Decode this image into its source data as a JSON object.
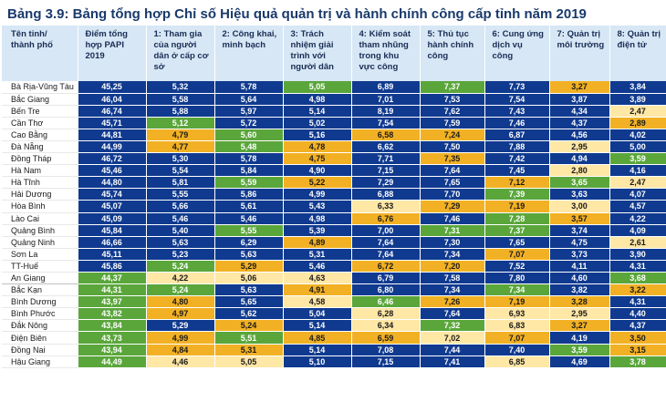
{
  "title": "Bảng 3.9: Bảng tổng hợp Chỉ số Hiệu quả quản trị và hành chính công cấp tỉnh năm 2019",
  "colors": {
    "b": "#103a8f",
    "g": "#5aa63b",
    "o": "#f2b124",
    "y": "#ffe7a6"
  },
  "headers": [
    "Tên tỉnh/ thành phố",
    "Điểm tổng hợp PAPI 2019",
    "1: Tham gia của người dân ở cấp cơ sở",
    "2: Công khai, minh bạch",
    "3: Trách nhiệm giải trình với người dân",
    "4: Kiểm soát tham nhũng trong khu vực công",
    "5: Thủ tục hành chính công",
    "6: Cung ứng dịch vụ công",
    "7: Quản trị môi trường",
    "8: Quản trị điện tử"
  ],
  "rows": [
    {
      "name": "Bà Rịa-Vũng Tàu",
      "v": [
        "45,25",
        "5,32",
        "5,78",
        "5,05",
        "6,89",
        "7,37",
        "7,73",
        "3,27",
        "3,84"
      ],
      "c": [
        "b",
        "b",
        "b",
        "g",
        "b",
        "g",
        "b",
        "o",
        "b"
      ]
    },
    {
      "name": "Bắc Giang",
      "v": [
        "46,04",
        "5,58",
        "5,64",
        "4,98",
        "7,01",
        "7,53",
        "7,54",
        "3,87",
        "3,89"
      ],
      "c": [
        "b",
        "b",
        "b",
        "b",
        "b",
        "b",
        "b",
        "b",
        "b"
      ]
    },
    {
      "name": "Bến Tre",
      "v": [
        "46,74",
        "5,88",
        "5,97",
        "5,14",
        "8,19",
        "7,62",
        "7,43",
        "4,34",
        "2,47"
      ],
      "c": [
        "b",
        "b",
        "b",
        "b",
        "b",
        "b",
        "b",
        "b",
        "y"
      ]
    },
    {
      "name": "Cần Thơ",
      "v": [
        "45,71",
        "5,12",
        "5,72",
        "5,02",
        "7,54",
        "7,59",
        "7,46",
        "4,37",
        "2,89"
      ],
      "c": [
        "b",
        "g",
        "b",
        "b",
        "b",
        "b",
        "b",
        "b",
        "o"
      ]
    },
    {
      "name": "Cao Bằng",
      "v": [
        "44,81",
        "4,79",
        "5,60",
        "5,16",
        "6,58",
        "7,24",
        "6,87",
        "4,56",
        "4,02"
      ],
      "c": [
        "b",
        "o",
        "g",
        "b",
        "o",
        "o",
        "b",
        "b",
        "b"
      ]
    },
    {
      "name": "Đà Nẵng",
      "v": [
        "44,99",
        "4,77",
        "5,48",
        "4,78",
        "6,62",
        "7,50",
        "7,88",
        "2,95",
        "5,00"
      ],
      "c": [
        "b",
        "o",
        "g",
        "o",
        "b",
        "b",
        "b",
        "y",
        "b"
      ]
    },
    {
      "name": "Đồng Tháp",
      "v": [
        "46,72",
        "5,30",
        "5,78",
        "4,75",
        "7,71",
        "7,35",
        "7,42",
        "4,94",
        "3,59"
      ],
      "c": [
        "b",
        "b",
        "b",
        "o",
        "b",
        "o",
        "b",
        "b",
        "g"
      ]
    },
    {
      "name": "Hà Nam",
      "v": [
        "45,46",
        "5,54",
        "5,84",
        "4,90",
        "7,15",
        "7,64",
        "7,45",
        "2,80",
        "4,16"
      ],
      "c": [
        "b",
        "b",
        "b",
        "b",
        "b",
        "b",
        "b",
        "y",
        "b"
      ]
    },
    {
      "name": "Hà Tĩnh",
      "v": [
        "44,80",
        "5,81",
        "5,59",
        "5,22",
        "7,29",
        "7,65",
        "7,12",
        "3,65",
        "2,47"
      ],
      "c": [
        "b",
        "b",
        "g",
        "o",
        "b",
        "b",
        "o",
        "g",
        "y"
      ]
    },
    {
      "name": "Hải Dương",
      "v": [
        "45,74",
        "5,55",
        "5,86",
        "4,99",
        "6,88",
        "7,70",
        "7,39",
        "3,63",
        "4,07"
      ],
      "c": [
        "b",
        "b",
        "b",
        "b",
        "b",
        "b",
        "g",
        "b",
        "b"
      ]
    },
    {
      "name": "Hòa Bình",
      "v": [
        "45,07",
        "5,66",
        "5,61",
        "5,43",
        "6,33",
        "7,29",
        "7,19",
        "3,00",
        "4,57"
      ],
      "c": [
        "b",
        "b",
        "b",
        "b",
        "y",
        "o",
        "o",
        "y",
        "b"
      ]
    },
    {
      "name": "Lào Cai",
      "v": [
        "45,09",
        "5,46",
        "5,46",
        "4,98",
        "6,76",
        "7,46",
        "7,28",
        "3,57",
        "4,22"
      ],
      "c": [
        "b",
        "b",
        "b",
        "b",
        "o",
        "b",
        "g",
        "o",
        "b"
      ]
    },
    {
      "name": "Quảng Bình",
      "v": [
        "45,84",
        "5,40",
        "5,55",
        "5,39",
        "7,00",
        "7,31",
        "7,37",
        "3,74",
        "4,09"
      ],
      "c": [
        "b",
        "b",
        "g",
        "b",
        "b",
        "g",
        "g",
        "b",
        "b"
      ]
    },
    {
      "name": "Quảng Ninh",
      "v": [
        "46,66",
        "5,63",
        "6,29",
        "4,89",
        "7,64",
        "7,30",
        "7,65",
        "4,75",
        "2,61"
      ],
      "c": [
        "b",
        "b",
        "b",
        "o",
        "b",
        "b",
        "b",
        "b",
        "y"
      ]
    },
    {
      "name": "Sơn La",
      "v": [
        "45,11",
        "5,23",
        "5,63",
        "5,31",
        "7,64",
        "7,34",
        "7,07",
        "3,73",
        "3,90"
      ],
      "c": [
        "b",
        "b",
        "b",
        "b",
        "b",
        "b",
        "o",
        "b",
        "b"
      ]
    },
    {
      "name": "TT-Huế",
      "v": [
        "45,86",
        "5,24",
        "5,29",
        "5,46",
        "6,72",
        "7,20",
        "7,52",
        "4,11",
        "4,31"
      ],
      "c": [
        "b",
        "g",
        "o",
        "b",
        "o",
        "o",
        "b",
        "b",
        "b"
      ]
    },
    {
      "name": "An Giang",
      "v": [
        "44,37",
        "4,22",
        "5,06",
        "4,63",
        "6,79",
        "7,58",
        "7,80",
        "4,60",
        "3,68"
      ],
      "c": [
        "g",
        "y",
        "y",
        "y",
        "b",
        "b",
        "b",
        "b",
        "g"
      ],
      "sep": true
    },
    {
      "name": "Bắc Kạn",
      "v": [
        "44,31",
        "5,24",
        "5,63",
        "4,91",
        "6,80",
        "7,34",
        "7,34",
        "3,82",
        "3,22"
      ],
      "c": [
        "g",
        "g",
        "b",
        "o",
        "b",
        "b",
        "g",
        "b",
        "o"
      ]
    },
    {
      "name": "Bình Dương",
      "v": [
        "43,97",
        "4,80",
        "5,65",
        "4,58",
        "6,46",
        "7,26",
        "7,19",
        "3,28",
        "4,31"
      ],
      "c": [
        "g",
        "o",
        "b",
        "y",
        "g",
        "o",
        "o",
        "o",
        "b"
      ]
    },
    {
      "name": "Bình Phước",
      "v": [
        "43,82",
        "4,97",
        "5,62",
        "5,04",
        "6,28",
        "7,64",
        "6,93",
        "2,95",
        "4,40"
      ],
      "c": [
        "g",
        "o",
        "b",
        "b",
        "y",
        "b",
        "y",
        "y",
        "b"
      ]
    },
    {
      "name": "Đắk Nông",
      "v": [
        "43,84",
        "5,29",
        "5,24",
        "5,14",
        "6,34",
        "7,32",
        "6,83",
        "3,27",
        "4,37"
      ],
      "c": [
        "g",
        "b",
        "o",
        "b",
        "y",
        "g",
        "y",
        "o",
        "b"
      ]
    },
    {
      "name": "Điện Biên",
      "v": [
        "43,73",
        "4,99",
        "5,51",
        "4,85",
        "6,59",
        "7,02",
        "7,07",
        "4,19",
        "3,50"
      ],
      "c": [
        "g",
        "o",
        "g",
        "o",
        "o",
        "y",
        "o",
        "b",
        "o"
      ]
    },
    {
      "name": "Đồng Nai",
      "v": [
        "43,94",
        "4,84",
        "5,31",
        "5,14",
        "7,08",
        "7,44",
        "7,40",
        "3,59",
        "3,15"
      ],
      "c": [
        "g",
        "o",
        "o",
        "b",
        "b",
        "b",
        "b",
        "g",
        "o"
      ]
    },
    {
      "name": "Hậu Giang",
      "v": [
        "44,49",
        "4,46",
        "5,05",
        "5,10",
        "7,15",
        "7,41",
        "6,85",
        "4,69",
        "3,78"
      ],
      "c": [
        "g",
        "y",
        "y",
        "b",
        "b",
        "b",
        "y",
        "b",
        "g"
      ]
    }
  ]
}
